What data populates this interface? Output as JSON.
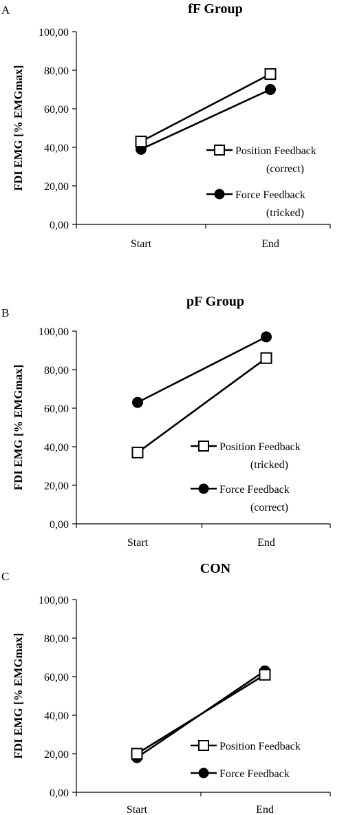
{
  "chart_data": [
    {
      "type": "line",
      "panel_label": "A",
      "title": "fF Group",
      "ylabel": "FDI EMG [% EMGmax]",
      "xlabel": "",
      "categories": [
        "Start",
        "End"
      ],
      "ylim": [
        0,
        100
      ],
      "yticks": [
        "0,00",
        "20,00",
        "40,00",
        "60,00",
        "80,00",
        "100,00"
      ],
      "grid": false,
      "legend_position": "right",
      "series": [
        {
          "name": "Position Feedback",
          "name_line2": "(correct)",
          "marker": "open-square",
          "values": [
            43,
            78
          ]
        },
        {
          "name": "Force Feedback",
          "name_line2": "(tricked)",
          "marker": "filled-circle",
          "values": [
            39,
            70
          ]
        }
      ]
    },
    {
      "type": "line",
      "panel_label": "B",
      "title": "pF Group",
      "ylabel": "FDI EMG [% EMGmax]",
      "xlabel": "",
      "categories": [
        "Start",
        "End"
      ],
      "ylim": [
        0,
        100
      ],
      "yticks": [
        "0,00",
        "20,00",
        "40,00",
        "60,00",
        "80,00",
        "100,00"
      ],
      "grid": false,
      "legend_position": "right",
      "series": [
        {
          "name": "Position Feedback",
          "name_line2": "(tricked)",
          "marker": "open-square",
          "values": [
            37,
            86
          ]
        },
        {
          "name": "Force Feedback",
          "name_line2": "(correct)",
          "marker": "filled-circle",
          "values": [
            63,
            97
          ]
        }
      ]
    },
    {
      "type": "line",
      "panel_label": "C",
      "title": "CON",
      "ylabel": "FDI EMG [% EMGmax]",
      "xlabel": "",
      "categories": [
        "Start",
        "End"
      ],
      "ylim": [
        0,
        100
      ],
      "yticks": [
        "0,00",
        "20,00",
        "40,00",
        "60,00",
        "80,00",
        "100,00"
      ],
      "grid": false,
      "legend_position": "right",
      "series": [
        {
          "name": "Position Feedback",
          "name_line2": "",
          "marker": "open-square",
          "values": [
            20,
            61
          ]
        },
        {
          "name": "Force Feedback",
          "name_line2": "",
          "marker": "filled-circle",
          "values": [
            18,
            63
          ]
        }
      ]
    }
  ]
}
